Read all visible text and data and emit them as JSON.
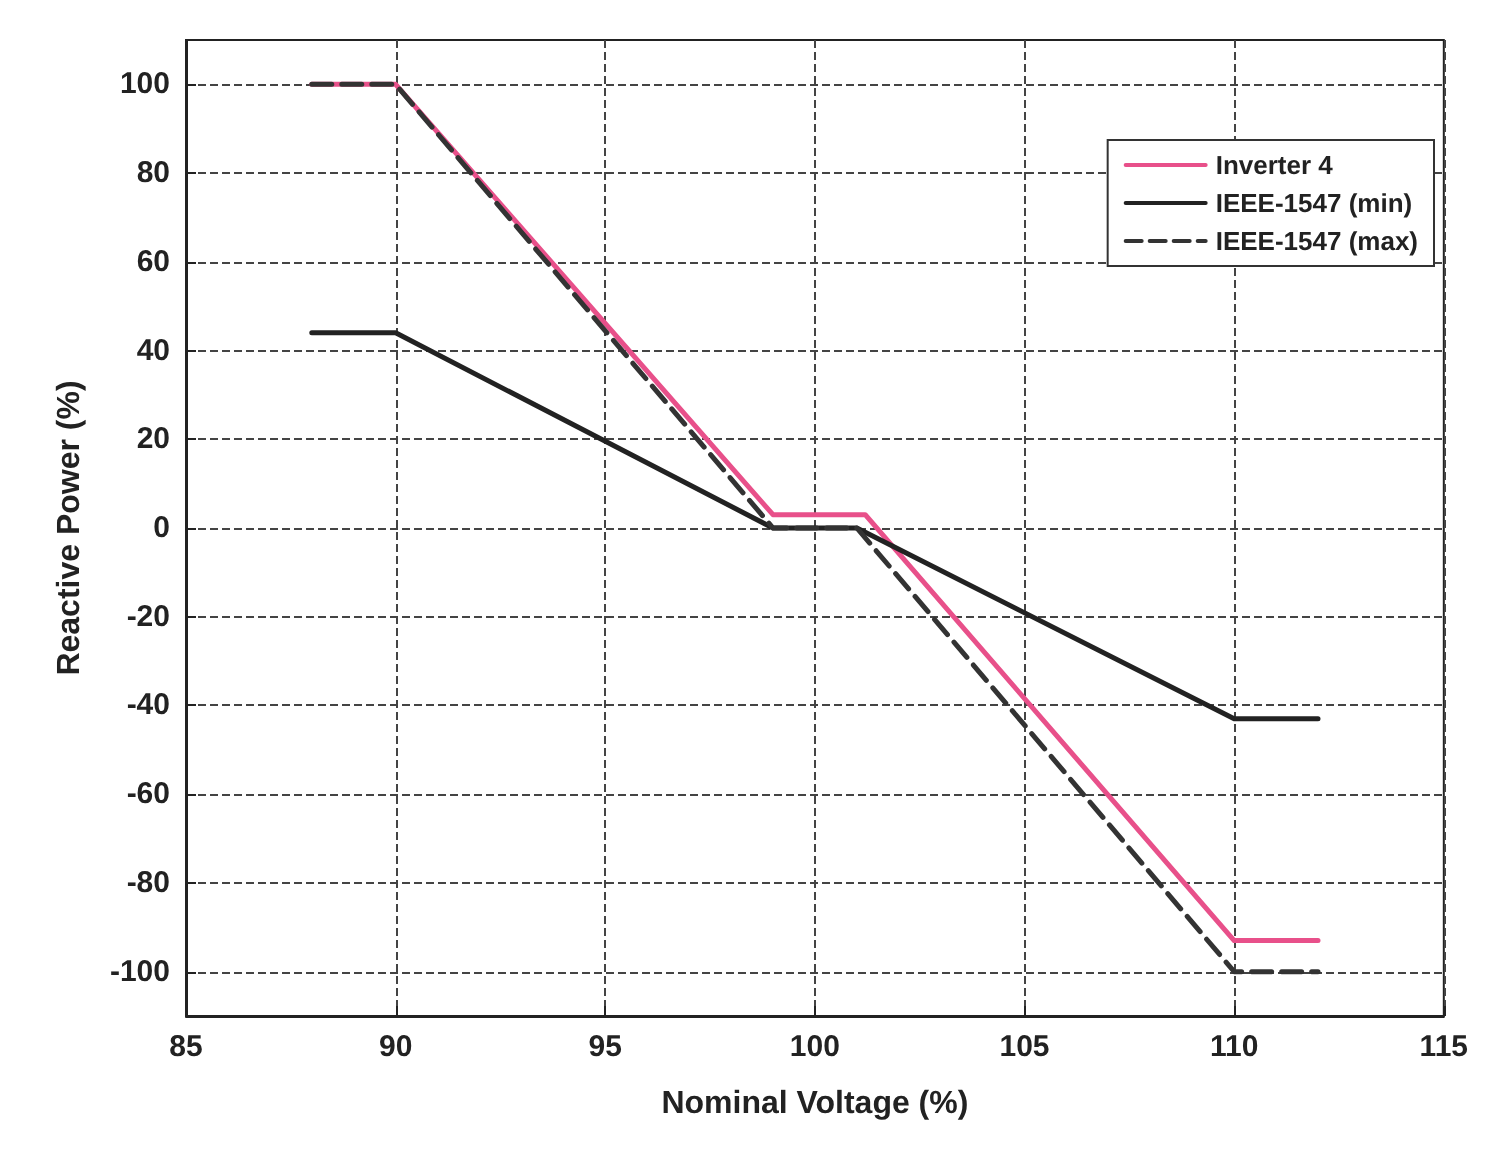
{
  "chart_data": {
    "type": "line",
    "xlabel": "Nominal Voltage (%)",
    "ylabel": "Reactive Power (%)",
    "xlim": [
      85,
      115
    ],
    "xticks": [
      85,
      90,
      95,
      100,
      105,
      110,
      115
    ],
    "ylim": [
      -110,
      110
    ],
    "yticks": [
      -100,
      -80,
      -60,
      -40,
      -20,
      0,
      20,
      40,
      60,
      80,
      100
    ],
    "grid": true,
    "legend": "top right",
    "marker": "none",
    "series": [
      {
        "name": "Inverter 4",
        "color": "#e8508a",
        "line_style": "solid",
        "x": [
          88,
          90,
          99,
          101.2,
          110,
          112
        ],
        "values": [
          100,
          100,
          3,
          3,
          -93,
          -93
        ]
      },
      {
        "name": "IEEE-1547 (min)",
        "color": "#222222",
        "line_style": "solid",
        "x": [
          88,
          90,
          99,
          101,
          110,
          112
        ],
        "values": [
          44,
          44,
          0,
          0,
          -43,
          -43
        ]
      },
      {
        "name": "IEEE-1547 (max)",
        "color": "#333333",
        "line_style": "dashed",
        "x": [
          88,
          90,
          99,
          101,
          110,
          112
        ],
        "values": [
          100,
          100,
          0,
          0,
          -100,
          -100
        ]
      }
    ]
  }
}
